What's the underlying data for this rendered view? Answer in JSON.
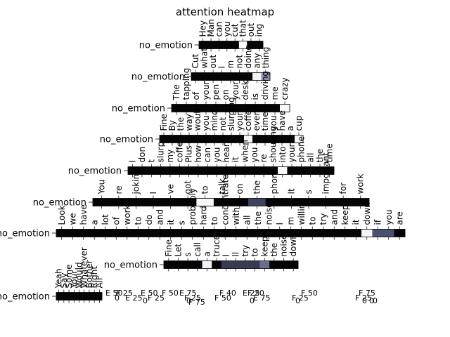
{
  "chart_data": {
    "type": "heatmap",
    "title": "attention heatmap",
    "xlabel": "",
    "ylabel": "",
    "colormap": [
      "#000000",
      "#52597a",
      "#a9aec4",
      "#ffffff"
    ],
    "rows": [
      {
        "label": "no_emotion",
        "tokens": [
          "Hey",
          "Man",
          "can",
          "you",
          "cut",
          "that",
          "out",
          "ing"
        ],
        "weights": [
          0.02,
          0.02,
          0.02,
          0.02,
          0.02,
          0.98,
          0.02,
          0.02
        ]
      },
      {
        "label": "no_emotion",
        "tokens": [
          "Cut",
          "what",
          "out",
          "I",
          "m",
          "not",
          "doing",
          "any",
          "thing"
        ],
        "weights": [
          0.02,
          0.02,
          0.02,
          0.02,
          0.02,
          0.02,
          0.02,
          0.95,
          0.55
        ]
      },
      {
        "label": "no_emotion",
        "tokens": [
          "The",
          "tapping",
          "of",
          "your",
          "pen",
          "on",
          "your",
          "desk",
          "is",
          "driving",
          "me",
          "crazy"
        ],
        "weights": [
          0.02,
          0.02,
          0.02,
          0.02,
          0.02,
          0.02,
          0.02,
          0.02,
          0.02,
          0.02,
          0.02,
          0.97
        ]
      },
      {
        "label": "no_emotion",
        "tokens": [
          "Fine",
          "By",
          "the",
          "way",
          "would",
          "you",
          "mind",
          "not",
          "slurping",
          "your",
          "coffee",
          "every",
          "time",
          "you",
          "have",
          "a",
          "cup"
        ],
        "weights": [
          0.02,
          0.02,
          0.02,
          0.02,
          0.02,
          0.02,
          0.02,
          0.02,
          0.02,
          0.02,
          0.96,
          0.02,
          0.02,
          0.02,
          0.02,
          0.02,
          0.96
        ]
      },
      {
        "label": "no_emotion",
        "tokens": [
          "I",
          "don",
          "t",
          "slurp",
          "my",
          "coffee",
          "Plus",
          "how",
          "can",
          "you",
          "hear",
          "it",
          "when",
          "you",
          "re",
          "shouting",
          "into",
          "your",
          "phone",
          "all",
          "the",
          "time"
        ],
        "weights": [
          0.02,
          0.02,
          0.02,
          0.02,
          0.02,
          0.02,
          0.02,
          0.02,
          0.02,
          0.02,
          0.02,
          0.02,
          0.02,
          0.02,
          0.02,
          0.02,
          0.97,
          0.02,
          0.02,
          0.02,
          0.02,
          0.02
        ]
      },
      {
        "label": "no_emotion",
        "tokens": [
          "You",
          "re",
          "joking",
          "I",
          "ve",
          "got",
          "to",
          "talk",
          "on",
          "the",
          "phone",
          "It",
          "s",
          "important",
          "for",
          "work"
        ],
        "weights": [
          0.02,
          0.02,
          0.02,
          0.02,
          0.02,
          0.02,
          0.97,
          0.02,
          0.02,
          0.25,
          0.02,
          0.02,
          0.02,
          0.02,
          0.02,
          0.02
        ]
      },
      {
        "label": "no_emotion",
        "tokens": [
          "Look",
          "we",
          "have",
          "a",
          "lot",
          "of",
          "work",
          "to",
          "do",
          "and",
          "it",
          "s",
          "probably",
          "hard",
          "to",
          "concentrate",
          "with",
          "all",
          "the",
          "noise",
          "I",
          "m",
          "willing",
          "to",
          "try",
          "and",
          "keep",
          "it",
          "down",
          "if",
          "you",
          "are"
        ],
        "weights": [
          0.02,
          0.02,
          0.02,
          0.02,
          0.02,
          0.02,
          0.02,
          0.02,
          0.02,
          0.02,
          0.02,
          0.02,
          0.02,
          0.02,
          0.02,
          0.02,
          0.02,
          0.02,
          0.02,
          0.02,
          0.02,
          0.02,
          0.02,
          0.02,
          0.02,
          0.02,
          0.02,
          0.02,
          0.96,
          0.3,
          0.3,
          0.02
        ]
      },
      {
        "label": "no_emotion",
        "tokens": [
          "Fine",
          "Let",
          "s",
          "call",
          "a",
          "truce",
          "I",
          "ll",
          "try",
          "to",
          "keep",
          "the",
          "noise",
          "down"
        ],
        "weights": [
          0.02,
          0.02,
          0.02,
          0.02,
          0.95,
          0.02,
          0.22,
          0.22,
          0.22,
          0.22,
          0.42,
          0.02,
          0.02,
          0.02
        ]
      },
      {
        "label": "no_emotion",
        "tokens": [
          "Yeah",
          "Say",
          "Some",
          "Your",
          "Would",
          "Whatever",
          "Bother",
          "Right",
          "All"
        ],
        "weights": [
          0.02,
          0.02,
          0.02,
          0.02,
          0.02,
          0.02,
          0.02,
          0.02,
          0.02
        ]
      }
    ],
    "tick_labels_bottom": [
      "E 50",
      "F 25",
      "E 25",
      "E 50",
      "F 25",
      "F 50",
      "E 75",
      "F 25",
      "F 75",
      "F 50",
      "F 40",
      "F 20",
      "E 75",
      "E 25",
      "F 50",
      "F 25",
      "F 75",
      "F 25",
      "0",
      "0",
      "0",
      "0",
      "0",
      "0",
      "0",
      "0"
    ]
  }
}
